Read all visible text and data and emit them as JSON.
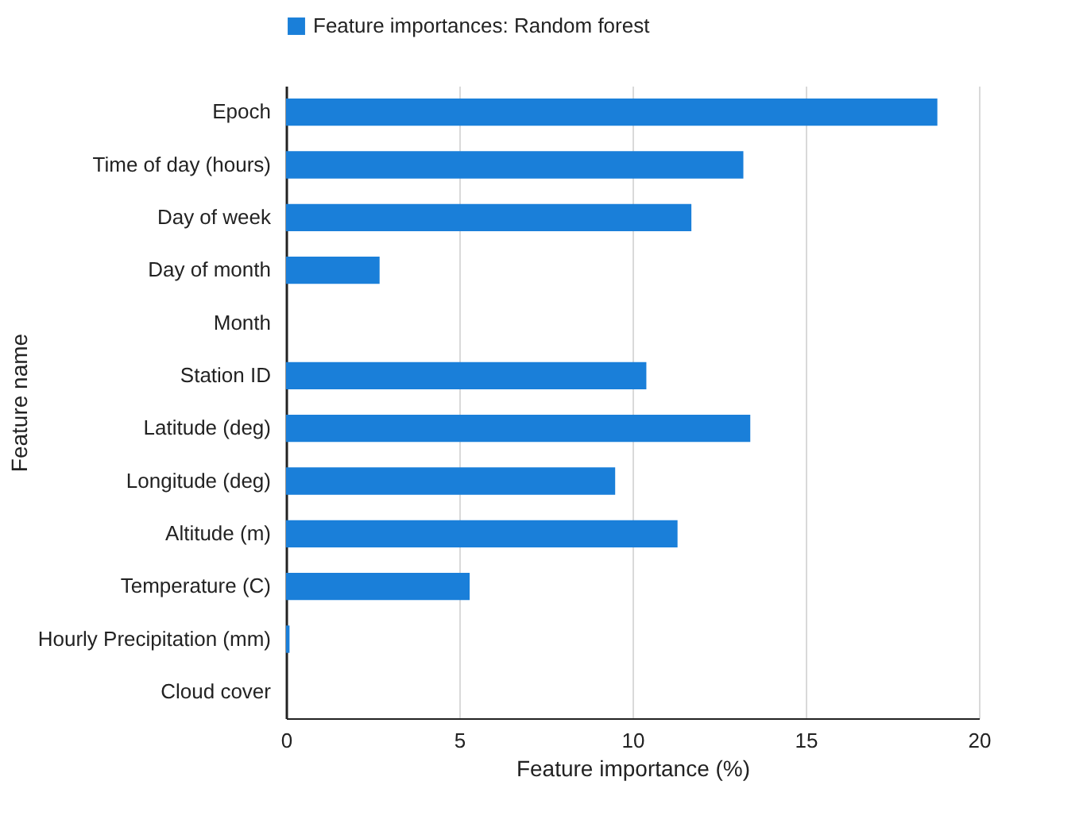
{
  "chart_data": {
    "type": "bar",
    "orientation": "horizontal",
    "xlabel": "Feature importance (%)",
    "ylabel": "Feature name",
    "categories": [
      "Epoch",
      "Time of day (hours)",
      "Day of week",
      "Day of month",
      "Month",
      "Station ID",
      "Latitude (deg)",
      "Longitude (deg)",
      "Altitude (m)",
      "Temperature (C)",
      "Hourly Precipitation (mm)",
      "Cloud cover"
    ],
    "series": [
      {
        "name": "Feature importances: Random forest",
        "color": "#1a7fd9",
        "values": [
          18.8,
          13.2,
          11.7,
          2.7,
          0,
          10.4,
          13.4,
          9.5,
          11.3,
          5.3,
          0.1,
          0
        ]
      }
    ],
    "xlim": [
      0,
      20
    ],
    "xticks": [
      0,
      5,
      10,
      15,
      20
    ],
    "grid": "x",
    "legend": "top"
  }
}
